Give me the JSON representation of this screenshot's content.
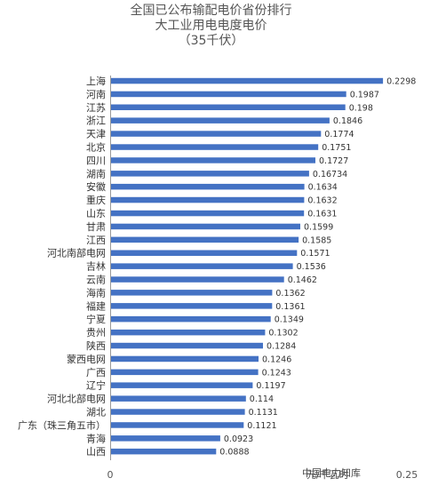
{
  "chart_data": {
    "type": "bar",
    "orientation": "horizontal",
    "title": [
      "全国已公布输配电价省份排行",
      "大工业用电电度电价",
      "（35千伏）"
    ],
    "categories": [
      "上海",
      "河南",
      "江苏",
      "浙江",
      "天津",
      "北京",
      "四川",
      "湖南",
      "安徽",
      "重庆",
      "山东",
      "甘肃",
      "江西",
      "河北南部电网",
      "吉林",
      "云南",
      "海南",
      "福建",
      "宁夏",
      "贵州",
      "陕西",
      "蒙西电网",
      "广西",
      "辽宁",
      "河北北部电网",
      "湖北",
      "广东（珠三角五市）",
      "青海",
      "山西"
    ],
    "values": [
      0.2298,
      0.1987,
      0.198,
      0.1846,
      0.1774,
      0.1751,
      0.1727,
      0.16734,
      0.1634,
      0.1632,
      0.1631,
      0.1599,
      0.1585,
      0.1571,
      0.1536,
      0.1462,
      0.1362,
      0.1361,
      0.1349,
      0.1302,
      0.1284,
      0.1246,
      0.1243,
      0.1197,
      0.114,
      0.1131,
      0.1121,
      0.0923,
      0.0888
    ],
    "value_labels": [
      "0.2298",
      "0.1987",
      "0.198",
      "0.1846",
      "0.1774",
      "0.1751",
      "0.1727",
      "0.16734",
      "0.1634",
      "0.1632",
      "0.1631",
      "0.1599",
      "0.1585",
      "0.1571",
      "0.1536",
      "0.1462",
      "0.1362",
      "0.1361",
      "0.1349",
      "0.1302",
      "0.1284",
      "0.1246",
      "0.1243",
      "0.1197",
      "0.114",
      "0.1131",
      "0.1121",
      "0.0923",
      "0.0888"
    ],
    "xlim": [
      0,
      0.25
    ],
    "x_ticks": [
      "0",
      "0.25"
    ],
    "x_unit_label": "元/千瓦时",
    "bar_color": "#4472C4",
    "grid": false,
    "legend": "none"
  },
  "watermark": "中国电力知库"
}
